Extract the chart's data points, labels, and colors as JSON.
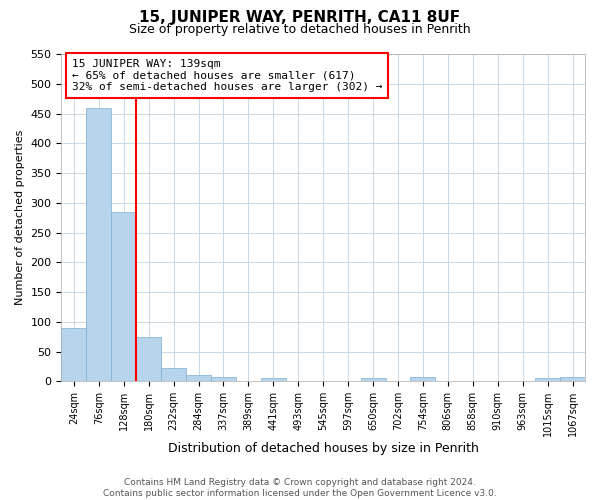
{
  "title": "15, JUNIPER WAY, PENRITH, CA11 8UF",
  "subtitle": "Size of property relative to detached houses in Penrith",
  "xlabel": "Distribution of detached houses by size in Penrith",
  "ylabel": "Number of detached properties",
  "footer_line1": "Contains HM Land Registry data © Crown copyright and database right 2024.",
  "footer_line2": "Contains public sector information licensed under the Open Government Licence v3.0.",
  "bar_values": [
    90,
    460,
    285,
    75,
    22,
    10,
    7,
    0,
    5,
    0,
    0,
    0,
    5,
    0,
    7,
    0,
    0,
    0,
    0,
    5,
    7
  ],
  "bin_labels": [
    "24sqm",
    "76sqm",
    "128sqm",
    "180sqm",
    "232sqm",
    "284sqm",
    "337sqm",
    "389sqm",
    "441sqm",
    "493sqm",
    "545sqm",
    "597sqm",
    "650sqm",
    "702sqm",
    "754sqm",
    "806sqm",
    "858sqm",
    "910sqm",
    "963sqm",
    "1015sqm",
    "1067sqm"
  ],
  "bar_color": "#b8d4ea",
  "bar_edge_color": "#7aafd4",
  "grid_color": "#c8d8e8",
  "background_color": "#ffffff",
  "annotation_text": "15 JUNIPER WAY: 139sqm\n← 65% of detached houses are smaller (617)\n32% of semi-detached houses are larger (302) →",
  "annotation_box_color": "white",
  "annotation_box_edge": "red",
  "ylim_max": 550,
  "yticks": [
    0,
    50,
    100,
    150,
    200,
    250,
    300,
    350,
    400,
    450,
    500,
    550
  ],
  "title_fontsize": 11,
  "subtitle_fontsize": 9,
  "ylabel_fontsize": 8,
  "xlabel_fontsize": 9,
  "tick_fontsize": 8,
  "xtick_fontsize": 7,
  "footer_fontsize": 6.5,
  "annot_fontsize": 8
}
